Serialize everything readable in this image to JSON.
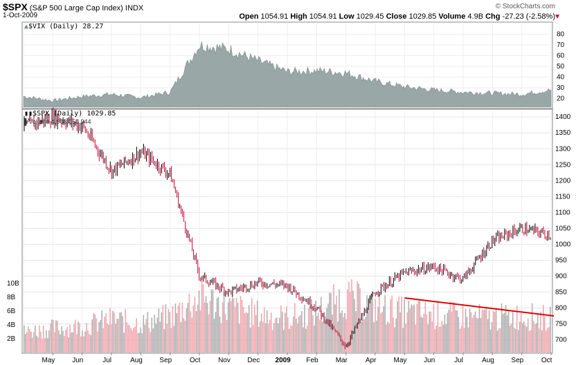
{
  "header": {
    "symbol": "$SPX",
    "name": "(S&P 500 Large Cap Index)",
    "exchange": "INDX",
    "date": "1-Oct-2009",
    "open_label": "Open",
    "open": "1054.91",
    "high_label": "High",
    "high": "1054.91",
    "low_label": "Low",
    "low": "1029.45",
    "close_label": "Close",
    "close": "1029.85",
    "volume_label": "Volume",
    "volume": "4.9B",
    "chg_label": "Chg",
    "chg": "-27.23 (-2.58%)",
    "chg_arrow": "▼",
    "brand": "© StockCharts.com"
  },
  "vix_panel": {
    "legend": "$VIX (Daily) 28.27",
    "y_ticks": [
      "80",
      "70",
      "60",
      "50",
      "40",
      "30",
      "20"
    ]
  },
  "price_panel": {
    "legend": "$SPX (Daily) 1029.85",
    "volume_legend": "Volume 4,908,050,944",
    "y_ticks": [
      "1400",
      "1350",
      "1300",
      "1250",
      "1200",
      "1150",
      "1100",
      "1050",
      "1000",
      "950",
      "900",
      "850",
      "800",
      "750",
      "700"
    ],
    "vol_ticks": [
      "10B",
      "8B",
      "6B",
      "4B",
      "2B"
    ]
  },
  "x_axis": {
    "labels": [
      "May",
      "Jun",
      "Jul",
      "Aug",
      "Sep",
      "Oct",
      "Nov",
      "Dec",
      "2009",
      "Feb",
      "Mar",
      "Apr",
      "May",
      "Jun",
      "Jul",
      "Aug",
      "Sep",
      "Oct"
    ]
  },
  "colors": {
    "up": "#000000",
    "down": "#cc0033",
    "vix_fill": "#9aa7a7",
    "vol_up": "#b0b0b0",
    "vol_down": "#f2a7b0",
    "trend": "#e00000",
    "chg": "#cc0033"
  },
  "chart_data": [
    {
      "type": "area",
      "title": "$VIX (Daily) 28.27",
      "ylim": [
        12,
        90
      ],
      "x": [
        "2008-04",
        "2008-05",
        "2008-06",
        "2008-07",
        "2008-08",
        "2008-09",
        "2008-10",
        "2008-11",
        "2008-12",
        "2009-01",
        "2009-02",
        "2009-03",
        "2009-04",
        "2009-05",
        "2009-06",
        "2009-07",
        "2009-08",
        "2009-09",
        "2009-10"
      ],
      "values": [
        22,
        18,
        22,
        24,
        21,
        26,
        70,
        66,
        55,
        45,
        46,
        44,
        36,
        31,
        28,
        26,
        25,
        24,
        28
      ]
    },
    {
      "type": "line",
      "title": "$SPX (Daily) 1029.85",
      "ylim": [
        660,
        1420
      ],
      "x": [
        "2008-04",
        "2008-05",
        "2008-06",
        "2008-07",
        "2008-08",
        "2008-09",
        "2008-10",
        "2008-11",
        "2008-12",
        "2009-01",
        "2009-02",
        "2009-03",
        "2009-04",
        "2009-05",
        "2009-06",
        "2009-07",
        "2009-08",
        "2009-09",
        "2009-10"
      ],
      "values": [
        1370,
        1400,
        1370,
        1230,
        1290,
        1220,
        900,
        850,
        880,
        870,
        800,
        680,
        850,
        910,
        930,
        890,
        1010,
        1050,
        1029.85
      ]
    },
    {
      "type": "bar",
      "title": "Volume 4,908,050,944",
      "ylim": [
        0,
        11
      ],
      "x": [
        "2008-04",
        "2008-05",
        "2008-06",
        "2008-07",
        "2008-08",
        "2008-09",
        "2008-10",
        "2008-11",
        "2008-12",
        "2009-01",
        "2009-02",
        "2009-03",
        "2009-04",
        "2009-05",
        "2009-06",
        "2009-07",
        "2009-08",
        "2009-09",
        "2009-10"
      ],
      "values": [
        3.0,
        3.5,
        3.8,
        4.8,
        4.2,
        5.2,
        8.0,
        6.5,
        5.5,
        5.0,
        5.8,
        8.0,
        6.5,
        5.8,
        5.5,
        5.2,
        5.0,
        5.3,
        4.9
      ]
    }
  ],
  "trendline": {
    "start": [
      "2009-05",
      7.9
    ],
    "end": [
      "2009-10",
      5.3
    ]
  }
}
